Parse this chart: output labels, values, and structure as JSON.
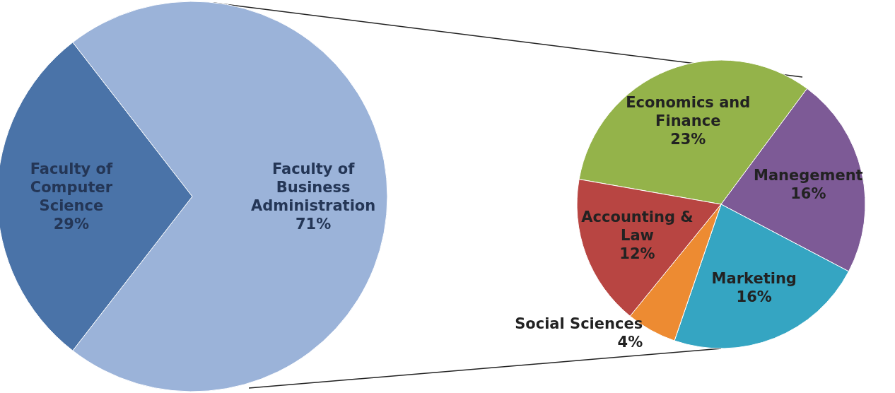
{
  "chart_data": [
    {
      "type": "pie",
      "categories": [
        "Faculty of Business Administration",
        "Faculty of Computer Science"
      ],
      "values": [
        71,
        29
      ],
      "colors": [
        "#9bb3d9",
        "#4a73a8"
      ],
      "value_labels": [
        "71%",
        "29%"
      ]
    },
    {
      "type": "pie",
      "categories": [
        "Economics and Finance",
        "Manegement",
        "Marketing",
        "Social Sciences",
        "Accounting & Law"
      ],
      "values": [
        23,
        16,
        16,
        4,
        12
      ],
      "colors": [
        "#94b34a",
        "#7d5a96",
        "#35a5c2",
        "#ed8b32",
        "#b84542"
      ],
      "value_labels": [
        "23%",
        "16%",
        "16%",
        "4%",
        "12%"
      ]
    }
  ]
}
